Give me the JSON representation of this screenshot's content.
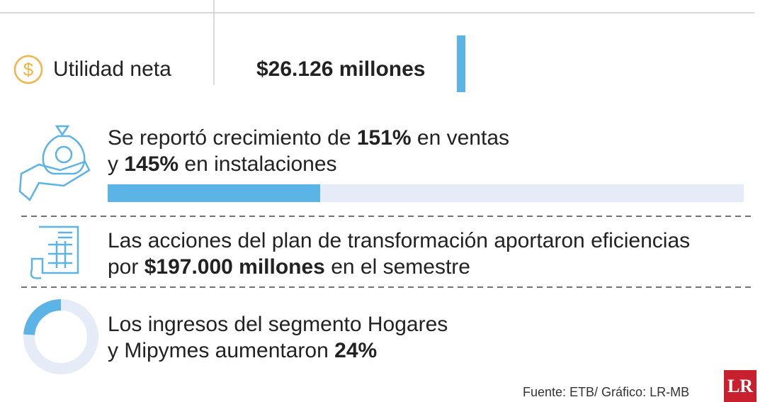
{
  "net_income": {
    "label": "Utilidad neta",
    "value": "$26.126 millones"
  },
  "items": [
    {
      "lines": [
        [
          {
            "text": "Se reportó crecimiento de "
          },
          {
            "text": "151%",
            "bold": true
          },
          {
            "text": " en ventas"
          }
        ],
        [
          {
            "text": "y "
          },
          {
            "text": "145%",
            "bold": true
          },
          {
            "text": " en instalaciones"
          }
        ]
      ]
    },
    {
      "lines": [
        [
          {
            "text": "Las acciones del plan de transformación aportaron eficiencias"
          }
        ],
        [
          {
            "text": "por "
          },
          {
            "text": "$197.000 millones",
            "bold": true
          },
          {
            "text": " en el semestre"
          }
        ]
      ]
    },
    {
      "lines": [
        [
          {
            "text": "Los ingresos del segmento Hogares"
          }
        ],
        [
          {
            "text": "y Mipymes aumentaron "
          },
          {
            "text": "24%",
            "bold": true
          }
        ]
      ],
      "donut": {
        "value": 24,
        "max": 100
      }
    }
  ],
  "footer": {
    "source": "Fuente: ETB/ Gráfico: LR-MB",
    "logo": "LR"
  }
}
